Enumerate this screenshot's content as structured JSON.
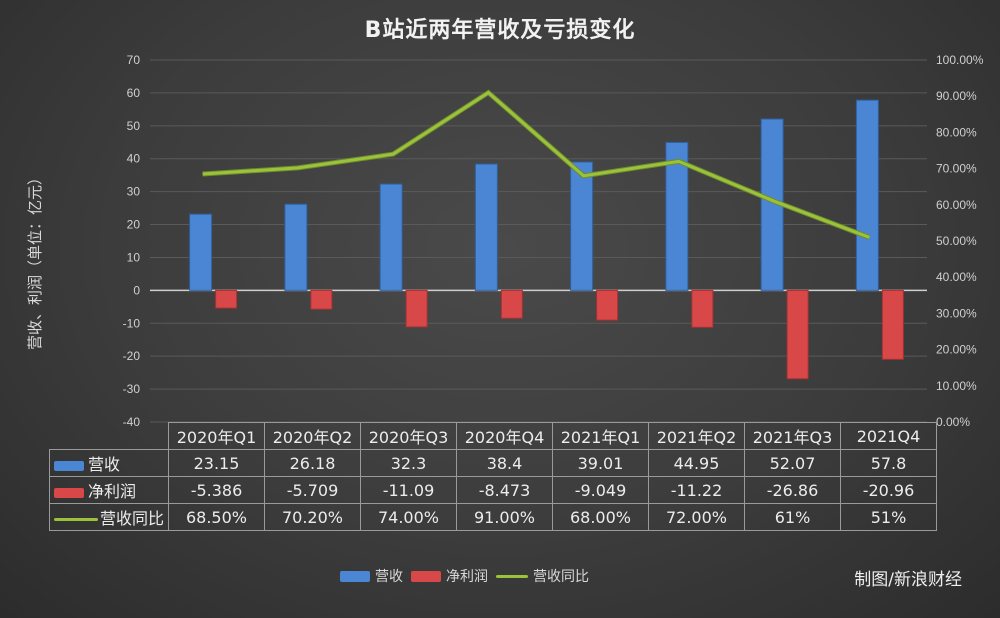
{
  "title": "B站近两年营收及亏损变化",
  "y_axis_label": "营收、利润（单位：亿元）",
  "credit": "制图/新浪财经",
  "colors": {
    "revenue": "#4a86d4",
    "net_profit": "#d94848",
    "yoy": "#9bc23c"
  },
  "legend": [
    {
      "key": "revenue",
      "label": "营收",
      "shape": "bar"
    },
    {
      "key": "net_profit",
      "label": "净利润",
      "shape": "bar"
    },
    {
      "key": "yoy",
      "label": "营收同比",
      "shape": "line"
    }
  ],
  "table": {
    "columns": [
      "2020年Q1",
      "2020年Q2",
      "2020年Q3",
      "2020年Q4",
      "2021年Q1",
      "2021年Q2",
      "2021年Q3",
      "2021Q4"
    ],
    "rows": [
      {
        "label": "营收",
        "values": [
          "23.15",
          "26.18",
          "32.3",
          "38.4",
          "39.01",
          "44.95",
          "52.07",
          "57.8"
        ]
      },
      {
        "label": "净利润",
        "values": [
          "-5.386",
          "-5.709",
          "-11.09",
          "-8.473",
          "-9.049",
          "-11.22",
          "-26.86",
          "-20.96"
        ]
      },
      {
        "label": "营收同比",
        "values": [
          "68.50%",
          "70.20%",
          "74.00%",
          "91.00%",
          "68.00%",
          "72.00%",
          "61%",
          "51%"
        ]
      }
    ]
  },
  "chart_data": {
    "type": "bar",
    "title": "B站近两年营收及亏损变化",
    "xlabel": "",
    "ylabel": "营收、利润（单位：亿元）",
    "y2label": "",
    "categories": [
      "2020年Q1",
      "2020年Q2",
      "2020年Q3",
      "2020年Q4",
      "2021年Q1",
      "2021年Q2",
      "2021年Q3",
      "2021Q4"
    ],
    "series": [
      {
        "name": "营收",
        "type": "bar",
        "axis": "left",
        "values": [
          23.15,
          26.18,
          32.3,
          38.4,
          39.01,
          44.95,
          52.07,
          57.8
        ]
      },
      {
        "name": "净利润",
        "type": "bar",
        "axis": "left",
        "values": [
          -5.386,
          -5.709,
          -11.09,
          -8.473,
          -9.049,
          -11.22,
          -26.86,
          -20.96
        ]
      },
      {
        "name": "营收同比",
        "type": "line",
        "axis": "right",
        "values": [
          68.5,
          70.2,
          74.0,
          91.0,
          68.0,
          72.0,
          61.0,
          51.0
        ]
      }
    ],
    "ylim": [
      -40,
      70
    ],
    "yticks": [
      70,
      60,
      50,
      40,
      30,
      20,
      10,
      0,
      -10,
      -20,
      -30,
      -40
    ],
    "y2lim": [
      0,
      100
    ],
    "y2ticks": [
      "100.00%",
      "90.00%",
      "80.00%",
      "70.00%",
      "60.00%",
      "50.00%",
      "40.00%",
      "30.00%",
      "20.00%",
      "10.00%",
      "0.00%"
    ],
    "grid": true,
    "legend_position": "bottom",
    "data_table": true
  }
}
